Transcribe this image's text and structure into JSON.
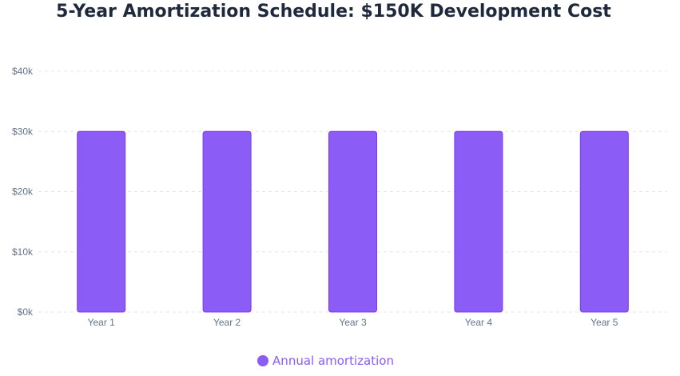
{
  "chart_data": {
    "type": "bar",
    "title": "5-Year Amortization Schedule: $150K Development Cost",
    "categories": [
      "Year 1",
      "Year 2",
      "Year 3",
      "Year 4",
      "Year 5"
    ],
    "series": [
      {
        "name": "Annual amortization",
        "values": [
          30000,
          30000,
          30000,
          30000,
          30000
        ],
        "color": "#8b5cf6",
        "border_color": "#7c3aed"
      }
    ],
    "y_ticks": [
      0,
      10000,
      20000,
      30000,
      40000
    ],
    "y_tick_labels": [
      "$0k",
      "$10k",
      "$20k",
      "$30k",
      "$40k"
    ],
    "ylim": [
      0,
      40000
    ],
    "xlabel": "",
    "ylabel": "",
    "grid": true,
    "legend_position": "bottom"
  },
  "colors": {
    "title": "#1e293b",
    "axis_text": "#64748b",
    "gridline": "#e5e7eb",
    "legend_text": "#8b5cf6"
  }
}
